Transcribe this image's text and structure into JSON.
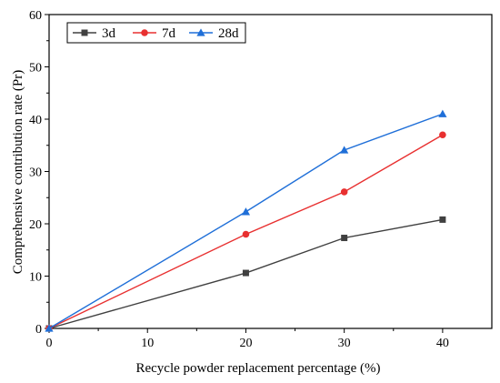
{
  "chart_data": {
    "type": "line",
    "xlabel": "Recycle powder replacement percentage  (%)",
    "ylabel": "Comprehensive contribution rate (Pr)",
    "xlim": [
      0,
      45
    ],
    "ylim": [
      0,
      60
    ],
    "xticks": [
      0,
      10,
      20,
      30,
      40
    ],
    "yticks": [
      0,
      10,
      20,
      30,
      40,
      50,
      60
    ],
    "grid": false,
    "legend_position": "top-left",
    "series": [
      {
        "name": "3d",
        "color": "#404040",
        "marker": "square",
        "x": [
          0,
          20,
          30,
          40
        ],
        "y": [
          0,
          10.6,
          17.3,
          20.8
        ]
      },
      {
        "name": "7d",
        "color": "#e83030",
        "marker": "circle",
        "x": [
          0,
          20,
          30,
          40
        ],
        "y": [
          0,
          18.0,
          26.1,
          37.0
        ]
      },
      {
        "name": "28d",
        "color": "#1f6fd8",
        "marker": "triangle",
        "x": [
          0,
          20,
          30,
          40
        ],
        "y": [
          0,
          22.3,
          34.1,
          41.0
        ]
      }
    ]
  }
}
